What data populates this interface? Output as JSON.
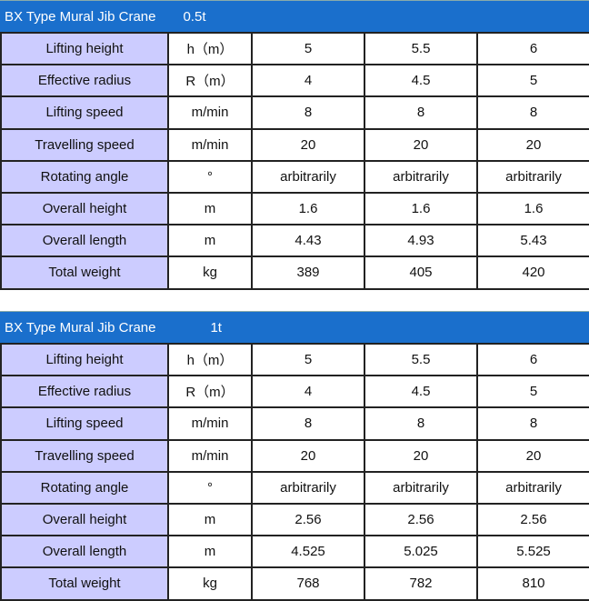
{
  "tables": [
    {
      "title": "BX Type Mural Jib Crane",
      "capacity": "0.5t",
      "rows": [
        [
          "Lifting height",
          "h（m）",
          "5",
          "5.5",
          "6"
        ],
        [
          "Effective radius",
          "R（m）",
          "4",
          "4.5",
          "5"
        ],
        [
          "Lifting speed",
          "m/min",
          "8",
          "8",
          "8"
        ],
        [
          "Travelling speed",
          "m/min",
          "20",
          "20",
          "20"
        ],
        [
          "Rotating angle",
          "°",
          "arbitrarily",
          "arbitrarily",
          "arbitrarily"
        ],
        [
          "Overall height",
          "m",
          "1.6",
          "1.6",
          "1.6"
        ],
        [
          "Overall length",
          "m",
          "4.43",
          "4.93",
          "5.43"
        ],
        [
          "Total weight",
          "kg",
          "389",
          "405",
          "420"
        ]
      ]
    },
    {
      "title": "BX Type Mural Jib Crane",
      "capacity": "1t",
      "rows": [
        [
          "Lifting height",
          "h（m）",
          "5",
          "5.5",
          "6"
        ],
        [
          "Effective radius",
          "R（m）",
          "4",
          "4.5",
          "5"
        ],
        [
          "Lifting speed",
          "m/min",
          "8",
          "8",
          "8"
        ],
        [
          "Travelling speed",
          "m/min",
          "20",
          "20",
          "20"
        ],
        [
          "Rotating angle",
          "°",
          "arbitrarily",
          "arbitrarily",
          "arbitrarily"
        ],
        [
          "Overall height",
          "m",
          "2.56",
          "2.56",
          "2.56"
        ],
        [
          "Overall length",
          "m",
          "4.525",
          "5.025",
          "5.525"
        ],
        [
          "Total weight",
          "kg",
          "768",
          "782",
          "810"
        ]
      ]
    }
  ]
}
